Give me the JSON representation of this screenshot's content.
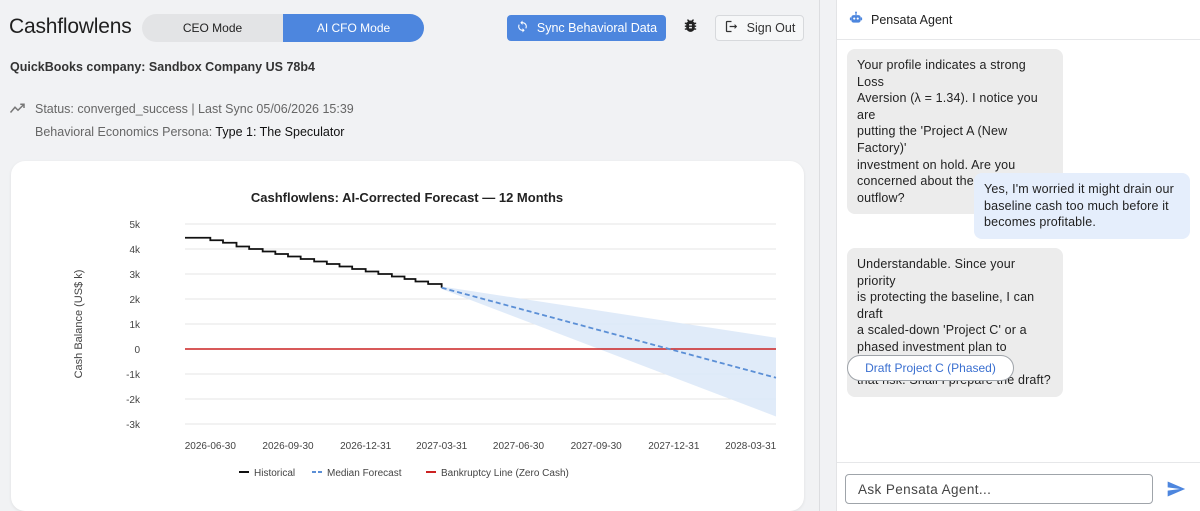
{
  "header": {
    "app_title": "Cashflowlens",
    "modes": [
      "CEO Mode",
      "AI CFO Mode"
    ],
    "active_mode": "AI CFO Mode",
    "sync_label": "Sync Behavioral Data",
    "signout_label": "Sign Out",
    "icons": {
      "sync": "refresh-icon",
      "bug": "bug-icon",
      "signout": "logout-icon"
    }
  },
  "info": {
    "company": "QuickBooks company: Sandbox Company US 78b4",
    "status": "Status: converged_success | Last Sync 05/06/2026 15:39",
    "persona_label": "Behavioral Economics Persona: ",
    "persona_value": "Type 1: The Speculator"
  },
  "colors": {
    "accent": "#4d86de",
    "historical": "#111111",
    "forecast": "#5b8fd6",
    "band": "#dbe7f8",
    "bankruptcy": "#cc2222"
  },
  "chart_data": {
    "type": "line",
    "title": "Cashflowlens: AI-Corrected Forecast — 12 Months",
    "xlabel": "",
    "ylabel": "Cash Balance (US$ k)",
    "ylim": [
      -3,
      5
    ],
    "yticks": [
      {
        "v": 5,
        "label": "5k"
      },
      {
        "v": 4,
        "label": "4k"
      },
      {
        "v": 3,
        "label": "3k"
      },
      {
        "v": 2,
        "label": "2k"
      },
      {
        "v": 1,
        "label": "1k"
      },
      {
        "v": 0,
        "label": "0"
      },
      {
        "v": -1,
        "label": "-1k"
      },
      {
        "v": -2,
        "label": "-2k"
      },
      {
        "v": -3,
        "label": "-3k"
      }
    ],
    "xticks": [
      "2026-06-30",
      "2026-09-30",
      "2026-12-31",
      "2027-03-31",
      "2027-06-30",
      "2027-09-30",
      "2027-12-31",
      "2028-03-31"
    ],
    "xlim": [
      "2026-05-31",
      "2028-04-30"
    ],
    "grid": "horizontal",
    "legend_position": "bottom",
    "series": [
      {
        "name": "Historical",
        "kind": "step",
        "points": [
          [
            "2026-05-31",
            4.45
          ],
          [
            "2026-06-30",
            4.35
          ],
          [
            "2026-07-15",
            4.25
          ],
          [
            "2026-07-31",
            4.1
          ],
          [
            "2026-08-15",
            4.0
          ],
          [
            "2026-08-31",
            3.9
          ],
          [
            "2026-09-15",
            3.8
          ],
          [
            "2026-09-30",
            3.7
          ],
          [
            "2026-10-15",
            3.6
          ],
          [
            "2026-10-31",
            3.5
          ],
          [
            "2026-11-15",
            3.4
          ],
          [
            "2026-11-30",
            3.3
          ],
          [
            "2026-12-15",
            3.2
          ],
          [
            "2026-12-31",
            3.1
          ],
          [
            "2027-01-15",
            3.0
          ],
          [
            "2027-01-31",
            2.9
          ],
          [
            "2027-02-15",
            2.8
          ],
          [
            "2027-02-28",
            2.7
          ],
          [
            "2027-03-15",
            2.6
          ],
          [
            "2027-03-31",
            2.45
          ]
        ]
      },
      {
        "name": "Median Forecast",
        "kind": "dashed",
        "points": [
          [
            "2027-03-31",
            2.45
          ],
          [
            "2028-04-30",
            -1.15
          ]
        ],
        "band": {
          "x": [
            "2027-03-31",
            "2028-04-30"
          ],
          "upper": [
            2.5,
            0.45
          ],
          "lower": [
            2.4,
            -2.7
          ]
        }
      },
      {
        "name": "Bankruptcy Line (Zero Cash)",
        "kind": "hline",
        "value": 0
      }
    ]
  },
  "agent": {
    "title": "Pensata Agent",
    "icon": "robot-icon",
    "messages": [
      {
        "role": "bot",
        "lines": [
          "Your profile indicates a strong Loss",
          "Aversion (λ = 1.34). I notice you are",
          "putting the 'Project A (New Factory)'",
          "investment on hold. Are you",
          "concerned about the initial cash",
          "outflow?"
        ]
      },
      {
        "role": "user",
        "lines": [
          "Yes, I'm worried it might drain our",
          "baseline cash too much before it",
          "becomes profitable."
        ]
      },
      {
        "role": "bot",
        "lines": [
          "Understandable. Since your priority",
          "is protecting the baseline, I can draft",
          "a scaled-down 'Project C' or a",
          "phased investment plan to mitigate",
          "that risk. Shall I prepare the draft?"
        ]
      }
    ],
    "suggestion": "Draft Project C (Phased)",
    "input_placeholder": "Ask Pensata Agent...",
    "send_icon": "send-icon"
  }
}
